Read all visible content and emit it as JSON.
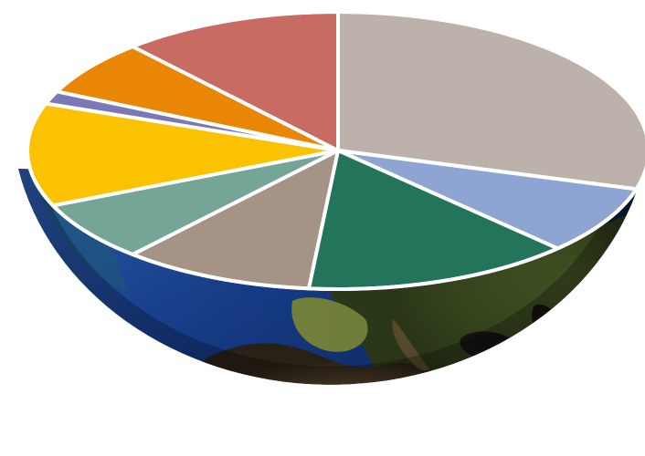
{
  "chart_data": {
    "type": "pie",
    "style": "3d-tilted-pie-on-globe-hemisphere",
    "title": "",
    "legend": "none",
    "slices": [
      {
        "value": 29.5,
        "color": "#bcb1ab"
      },
      {
        "value": 8.0,
        "color": "#8ea4d2"
      },
      {
        "value": 14.0,
        "color": "#22745a"
      },
      {
        "value": 10.0,
        "color": "#a59386"
      },
      {
        "value": 7.0,
        "color": "#75a596"
      },
      {
        "value": 12.0,
        "color": "#fac201"
      },
      {
        "value": 1.5,
        "color": "#7b78b5"
      },
      {
        "value": 6.5,
        "color": "#e98606"
      },
      {
        "value": 11.5,
        "color": "#c86b63"
      }
    ]
  }
}
